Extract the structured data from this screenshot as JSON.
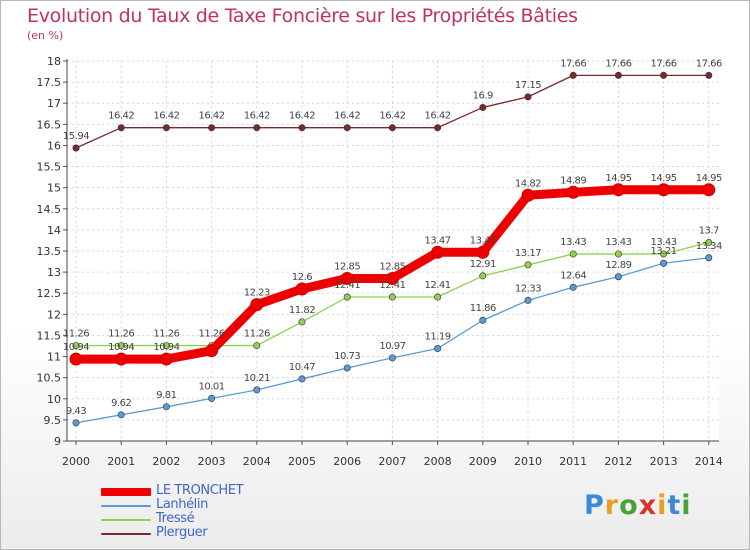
{
  "header": {
    "title": "Evolution du Taux de Taxe Foncière sur les Propriétés Bâties",
    "subtitle": "(en %)"
  },
  "logo": {
    "letters": [
      "P",
      "r",
      "o",
      "x",
      "i",
      "t",
      "i"
    ],
    "letter_colors": [
      "#3b8ad6",
      "#e8a21f",
      "#4aa13a",
      "#d9342b",
      "#e8a21f",
      "#3b8ad6",
      "#4aa13a"
    ]
  },
  "legend": {
    "items": [
      "LE TRONCHET",
      "Lanhélin",
      "Tressé",
      "Plerguer"
    ]
  },
  "chart_data": {
    "type": "line",
    "title": "Evolution du Taux de Taxe Foncière sur les Propriétés Bâties",
    "ylabel": "(en %)",
    "xlabel": "",
    "ylim": [
      9,
      18
    ],
    "yticks": [
      "9",
      "9.5",
      "10",
      "10.5",
      "11",
      "11.5",
      "12",
      "12.5",
      "13",
      "13.5",
      "14",
      "14.5",
      "15",
      "15.5",
      "16",
      "16.5",
      "17",
      "17.5",
      "18"
    ],
    "x": [
      "2000",
      "2001",
      "2002",
      "2003",
      "2004",
      "2005",
      "2006",
      "2007",
      "2008",
      "2009",
      "2010",
      "2011",
      "2012",
      "2013",
      "2014"
    ],
    "grid": true,
    "series": [
      {
        "name": "LE TRONCHET",
        "color": "#ee0000",
        "values": [
          10.94,
          10.94,
          10.94,
          11.14,
          12.23,
          12.6,
          12.85,
          12.85,
          13.47,
          13.47,
          14.82,
          14.89,
          14.95,
          14.95,
          14.95
        ],
        "labels": [
          "10.94",
          "10.94",
          "10.94",
          "",
          "12.23",
          "12.6",
          "12.85",
          "12.85",
          "13.47",
          "13.47",
          "14.82",
          "14.89",
          "14.95",
          "14.95",
          "14.95"
        ]
      },
      {
        "name": "Lanhélin",
        "color": "#5b9bd5",
        "values": [
          9.43,
          9.62,
          9.81,
          10.01,
          10.21,
          10.47,
          10.73,
          10.97,
          11.19,
          11.86,
          12.33,
          12.64,
          12.89,
          13.21,
          13.34
        ],
        "labels": [
          "9.43",
          "9.62",
          "9.81",
          "10.01",
          "10.21",
          "10.47",
          "10.73",
          "10.97",
          "11.19",
          "11.86",
          "12.33",
          "12.64",
          "12.89",
          "13.21",
          "13.34"
        ]
      },
      {
        "name": "Tressé",
        "color": "#8fd14f",
        "values": [
          11.26,
          11.26,
          11.26,
          11.26,
          11.26,
          11.82,
          12.41,
          12.41,
          12.41,
          12.91,
          13.17,
          13.43,
          13.43,
          13.43,
          13.7
        ],
        "labels": [
          "11.26",
          "11.26",
          "11.26",
          "11.26",
          "11.26",
          "11.82",
          "12.41",
          "12.41",
          "12.41",
          "12.91",
          "13.17",
          "13.43",
          "13.43",
          "13.43",
          "13.7"
        ]
      },
      {
        "name": "Plerguer",
        "color": "#7a2a2a",
        "values": [
          15.94,
          16.42,
          16.42,
          16.42,
          16.42,
          16.42,
          16.42,
          16.42,
          16.42,
          16.9,
          17.15,
          17.66,
          17.66,
          17.66,
          17.66
        ],
        "labels": [
          "15.94",
          "16.42",
          "16.42",
          "16.42",
          "16.42",
          "16.42",
          "16.42",
          "16.42",
          "16.42",
          "16.9",
          "17.15",
          "17.66",
          "17.66",
          "17.66",
          "17.66"
        ]
      }
    ]
  }
}
